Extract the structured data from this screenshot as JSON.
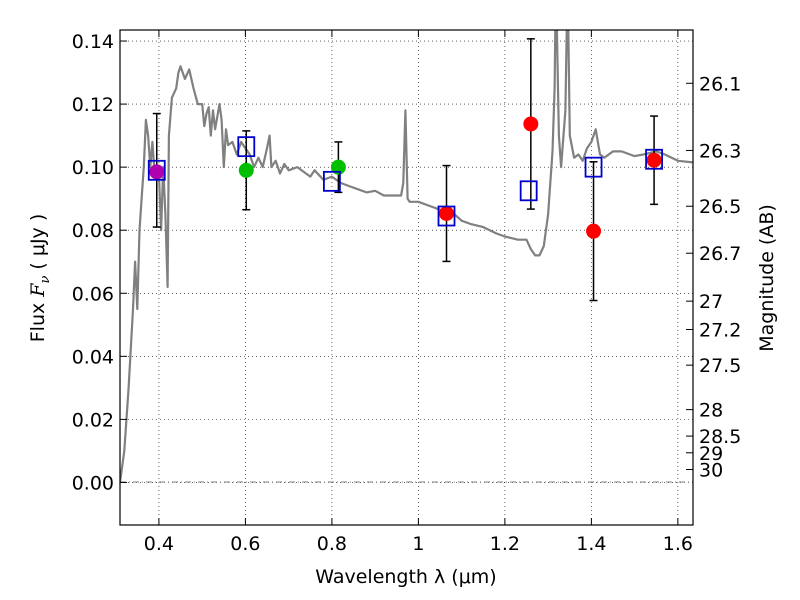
{
  "chart_data": {
    "type": "scatter",
    "xlabel": "Wavelength  λ (μm)",
    "ylabel_prefix": "Flux  ",
    "ylabel_symbol": "F",
    "ylabel_subscript": "ν",
    "ylabel_suffix": "  ( μJy )",
    "ylabel_right": "Magnitude (AB)",
    "xlim": [
      0.31,
      1.635
    ],
    "ylim": [
      -0.0135,
      0.1435
    ],
    "grid": true,
    "x_ticks": [
      0.4,
      0.6,
      0.8,
      1.0,
      1.2,
      1.4,
      1.6
    ],
    "x_tick_labels": [
      "0.4",
      "0.6",
      "0.8",
      "1",
      "1.2",
      "1.4",
      "1.6"
    ],
    "y_ticks": [
      0.0,
      0.02,
      0.04,
      0.06,
      0.08,
      0.1,
      0.12,
      0.14
    ],
    "y_tick_labels": [
      "0.00",
      "0.02",
      "0.04",
      "0.06",
      "0.08",
      "0.10",
      "0.12",
      "0.14"
    ],
    "right_ticks": [
      {
        "flux": 0.1266,
        "label": "26.1"
      },
      {
        "flux": 0.1053,
        "label": "26.3"
      },
      {
        "flux": 0.0876,
        "label": "26.5"
      },
      {
        "flux": 0.0727,
        "label": "26.7"
      },
      {
        "flux": 0.0575,
        "label": "27"
      },
      {
        "flux": 0.0485,
        "label": "27.2"
      },
      {
        "flux": 0.0372,
        "label": "27.5"
      },
      {
        "flux": 0.0231,
        "label": "28"
      },
      {
        "flux": 0.0147,
        "label": "28.5"
      },
      {
        "flux": 0.0094,
        "label": "29"
      },
      {
        "flux": 0.0041,
        "label": "30"
      }
    ],
    "series": [
      {
        "name": "model-spectrum",
        "style": "line",
        "color": "#808080",
        "points": [
          [
            0.31,
            0.0
          ],
          [
            0.32,
            0.01
          ],
          [
            0.33,
            0.03
          ],
          [
            0.34,
            0.055
          ],
          [
            0.345,
            0.07
          ],
          [
            0.35,
            0.055
          ],
          [
            0.355,
            0.08
          ],
          [
            0.36,
            0.09
          ],
          [
            0.365,
            0.1
          ],
          [
            0.37,
            0.115
          ],
          [
            0.375,
            0.11
          ],
          [
            0.38,
            0.1
          ],
          [
            0.385,
            0.108
          ],
          [
            0.39,
            0.098
          ],
          [
            0.395,
            0.1
          ],
          [
            0.4,
            0.098
          ],
          [
            0.405,
            0.08
          ],
          [
            0.41,
            0.1
          ],
          [
            0.415,
            0.085
          ],
          [
            0.42,
            0.062
          ],
          [
            0.423,
            0.11
          ],
          [
            0.43,
            0.122
          ],
          [
            0.44,
            0.125
          ],
          [
            0.445,
            0.13
          ],
          [
            0.45,
            0.132
          ],
          [
            0.46,
            0.128
          ],
          [
            0.47,
            0.131
          ],
          [
            0.48,
            0.125
          ],
          [
            0.49,
            0.12
          ],
          [
            0.5,
            0.12
          ],
          [
            0.505,
            0.113
          ],
          [
            0.51,
            0.117
          ],
          [
            0.515,
            0.119
          ],
          [
            0.52,
            0.11
          ],
          [
            0.525,
            0.118
          ],
          [
            0.53,
            0.112
          ],
          [
            0.54,
            0.12
          ],
          [
            0.545,
            0.115
          ],
          [
            0.55,
            0.1
          ],
          [
            0.555,
            0.112
          ],
          [
            0.56,
            0.107
          ],
          [
            0.57,
            0.108
          ],
          [
            0.58,
            0.104
          ],
          [
            0.59,
            0.108
          ],
          [
            0.6,
            0.106
          ],
          [
            0.61,
            0.104
          ],
          [
            0.62,
            0.1
          ],
          [
            0.63,
            0.103
          ],
          [
            0.64,
            0.1
          ],
          [
            0.65,
            0.106
          ],
          [
            0.656,
            0.11
          ],
          [
            0.66,
            0.1
          ],
          [
            0.67,
            0.102
          ],
          [
            0.68,
            0.098
          ],
          [
            0.69,
            0.101
          ],
          [
            0.7,
            0.099
          ],
          [
            0.72,
            0.1
          ],
          [
            0.74,
            0.098
          ],
          [
            0.75,
            0.097
          ],
          [
            0.76,
            0.099
          ],
          [
            0.78,
            0.096
          ],
          [
            0.8,
            0.097
          ],
          [
            0.82,
            0.095
          ],
          [
            0.84,
            0.094
          ],
          [
            0.86,
            0.093
          ],
          [
            0.88,
            0.092
          ],
          [
            0.9,
            0.0925
          ],
          [
            0.92,
            0.091
          ],
          [
            0.94,
            0.091
          ],
          [
            0.96,
            0.091
          ],
          [
            0.965,
            0.095
          ],
          [
            0.97,
            0.118
          ],
          [
            0.975,
            0.09
          ],
          [
            0.98,
            0.089
          ],
          [
            1.0,
            0.089
          ],
          [
            1.02,
            0.088
          ],
          [
            1.05,
            0.0865
          ],
          [
            1.08,
            0.0855
          ],
          [
            1.1,
            0.083
          ],
          [
            1.12,
            0.082
          ],
          [
            1.15,
            0.081
          ],
          [
            1.18,
            0.079
          ],
          [
            1.2,
            0.078
          ],
          [
            1.23,
            0.077
          ],
          [
            1.25,
            0.077
          ],
          [
            1.26,
            0.074
          ],
          [
            1.27,
            0.072
          ],
          [
            1.28,
            0.072
          ],
          [
            1.29,
            0.075
          ],
          [
            1.3,
            0.085
          ],
          [
            1.31,
            0.105
          ],
          [
            1.315,
            0.125
          ],
          [
            1.318,
            0.16
          ],
          [
            1.325,
            0.11
          ],
          [
            1.33,
            0.1
          ],
          [
            1.34,
            0.118
          ],
          [
            1.345,
            0.16
          ],
          [
            1.35,
            0.11
          ],
          [
            1.36,
            0.103
          ],
          [
            1.37,
            0.104
          ],
          [
            1.38,
            0.102
          ],
          [
            1.39,
            0.106
          ],
          [
            1.4,
            0.108
          ],
          [
            1.41,
            0.112
          ],
          [
            1.42,
            0.104
          ],
          [
            1.43,
            0.103
          ],
          [
            1.45,
            0.105
          ],
          [
            1.47,
            0.105
          ],
          [
            1.5,
            0.1035
          ],
          [
            1.52,
            0.104
          ],
          [
            1.55,
            0.105
          ],
          [
            1.57,
            0.104
          ],
          [
            1.6,
            0.102
          ],
          [
            1.635,
            0.1015
          ]
        ]
      },
      {
        "name": "photometry-errorbars",
        "style": "errorbar",
        "color": "#000000",
        "points": [
          {
            "x": 0.395,
            "y": 0.099,
            "yerr": 0.018
          },
          {
            "x": 0.602,
            "y": 0.099,
            "yerr": 0.0125
          },
          {
            "x": 0.815,
            "y": 0.1,
            "yerr": 0.008
          },
          {
            "x": 1.065,
            "y": 0.0853,
            "yerr": 0.0152
          },
          {
            "x": 1.26,
            "y": 0.1137,
            "yerr": 0.027
          },
          {
            "x": 1.405,
            "y": 0.0797,
            "yerr": 0.022
          },
          {
            "x": 1.545,
            "y": 0.1022,
            "yerr": 0.014
          }
        ]
      },
      {
        "name": "observed-red",
        "style": "marker-circle",
        "color": "#ff0000",
        "points": [
          [
            1.065,
            0.0853
          ],
          [
            1.26,
            0.1137
          ],
          [
            1.405,
            0.0797
          ],
          [
            1.545,
            0.1022
          ]
        ]
      },
      {
        "name": "observed-green",
        "style": "marker-circle",
        "color": "#00bf00",
        "points": [
          [
            0.602,
            0.099
          ],
          [
            0.815,
            0.1
          ]
        ]
      },
      {
        "name": "observed-purple",
        "style": "marker-circle",
        "color": "#b000b0",
        "points": [
          [
            0.395,
            0.0985
          ]
        ]
      },
      {
        "name": "model-synthetic",
        "style": "marker-square",
        "color": "#0000cc",
        "points": [
          [
            0.395,
            0.099
          ],
          [
            0.602,
            0.1065
          ],
          [
            0.8,
            0.0955
          ],
          [
            1.065,
            0.0845
          ],
          [
            1.255,
            0.0925
          ],
          [
            1.405,
            0.1
          ],
          [
            1.545,
            0.1025
          ]
        ]
      }
    ]
  }
}
